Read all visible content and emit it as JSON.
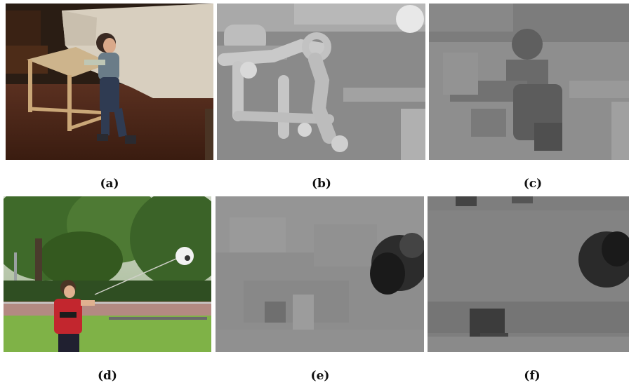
{
  "figure": {
    "panels": [
      {
        "id": "a",
        "caption": "(a)",
        "content": "photo: toddler pushing a wooden table"
      },
      {
        "id": "b",
        "caption": "(b)",
        "content": "grayscale map"
      },
      {
        "id": "c",
        "caption": "(c)",
        "content": "grayscale map"
      },
      {
        "id": "d",
        "caption": "(d)",
        "content": "photo: boy with a ball on a string in a park"
      },
      {
        "id": "e",
        "caption": "(e)",
        "content": "grayscale map"
      },
      {
        "id": "f",
        "caption": "(f)",
        "content": "grayscale map"
      }
    ]
  }
}
